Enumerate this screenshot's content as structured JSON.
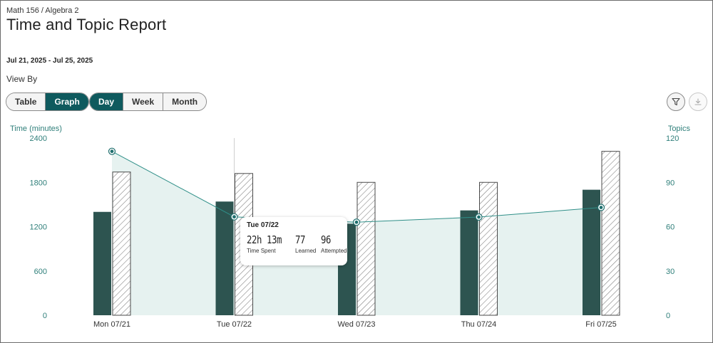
{
  "header": {
    "breadcrumb": "Math 156 / Algebra 2",
    "title": "Time and Topic Report",
    "date_range": "Jul 21, 2025 - Jul 25, 2025",
    "view_by_label": "View By"
  },
  "view_toggle": {
    "table_label": "Table",
    "graph_label": "Graph",
    "selected": "Graph"
  },
  "period_toggle": {
    "day_label": "Day",
    "week_label": "Week",
    "month_label": "Month",
    "selected": "Day"
  },
  "icons": {
    "filter": "filter-icon",
    "download": "download-icon"
  },
  "colors": {
    "accent": "#0f5a5e",
    "learned_bar": "#2d5450",
    "attempted_bar_stroke": "#4a4a4a",
    "time_line": "#2f8f88",
    "time_area": "#e6f2f0",
    "axis_text": "#2f7f7a"
  },
  "tooltip": {
    "date": "Tue 07/22",
    "time_spent_value": "22h 13m",
    "time_spent_label": "Time Spent",
    "learned_value": "77",
    "learned_label": "Learned",
    "attempted_value": "96",
    "attempted_label": "Attempted"
  },
  "chart_data": {
    "type": "bar",
    "categories": [
      "Mon 07/21",
      "Tue 07/22",
      "Wed 07/23",
      "Thu 07/24",
      "Fri 07/25"
    ],
    "left_axis": {
      "label": "Time (minutes)",
      "ylim": [
        0,
        2400
      ],
      "ticks": [
        0,
        600,
        1200,
        1800,
        2400
      ]
    },
    "right_axis": {
      "label": "Topics",
      "ylim": [
        0,
        120
      ],
      "ticks": [
        0,
        30,
        60,
        90,
        120
      ]
    },
    "series": [
      {
        "name": "Learned",
        "kind": "bar",
        "axis": "right",
        "style": "solid",
        "values": [
          70,
          77,
          62,
          71,
          85
        ]
      },
      {
        "name": "Attempted",
        "kind": "bar",
        "axis": "right",
        "style": "hatched",
        "values": [
          97,
          96,
          90,
          90,
          111
        ]
      },
      {
        "name": "Time Spent",
        "kind": "area-line",
        "axis": "left",
        "values": [
          2220,
          1333,
          1260,
          1330,
          1460
        ]
      }
    ],
    "hover_index": 1,
    "grid": false
  }
}
